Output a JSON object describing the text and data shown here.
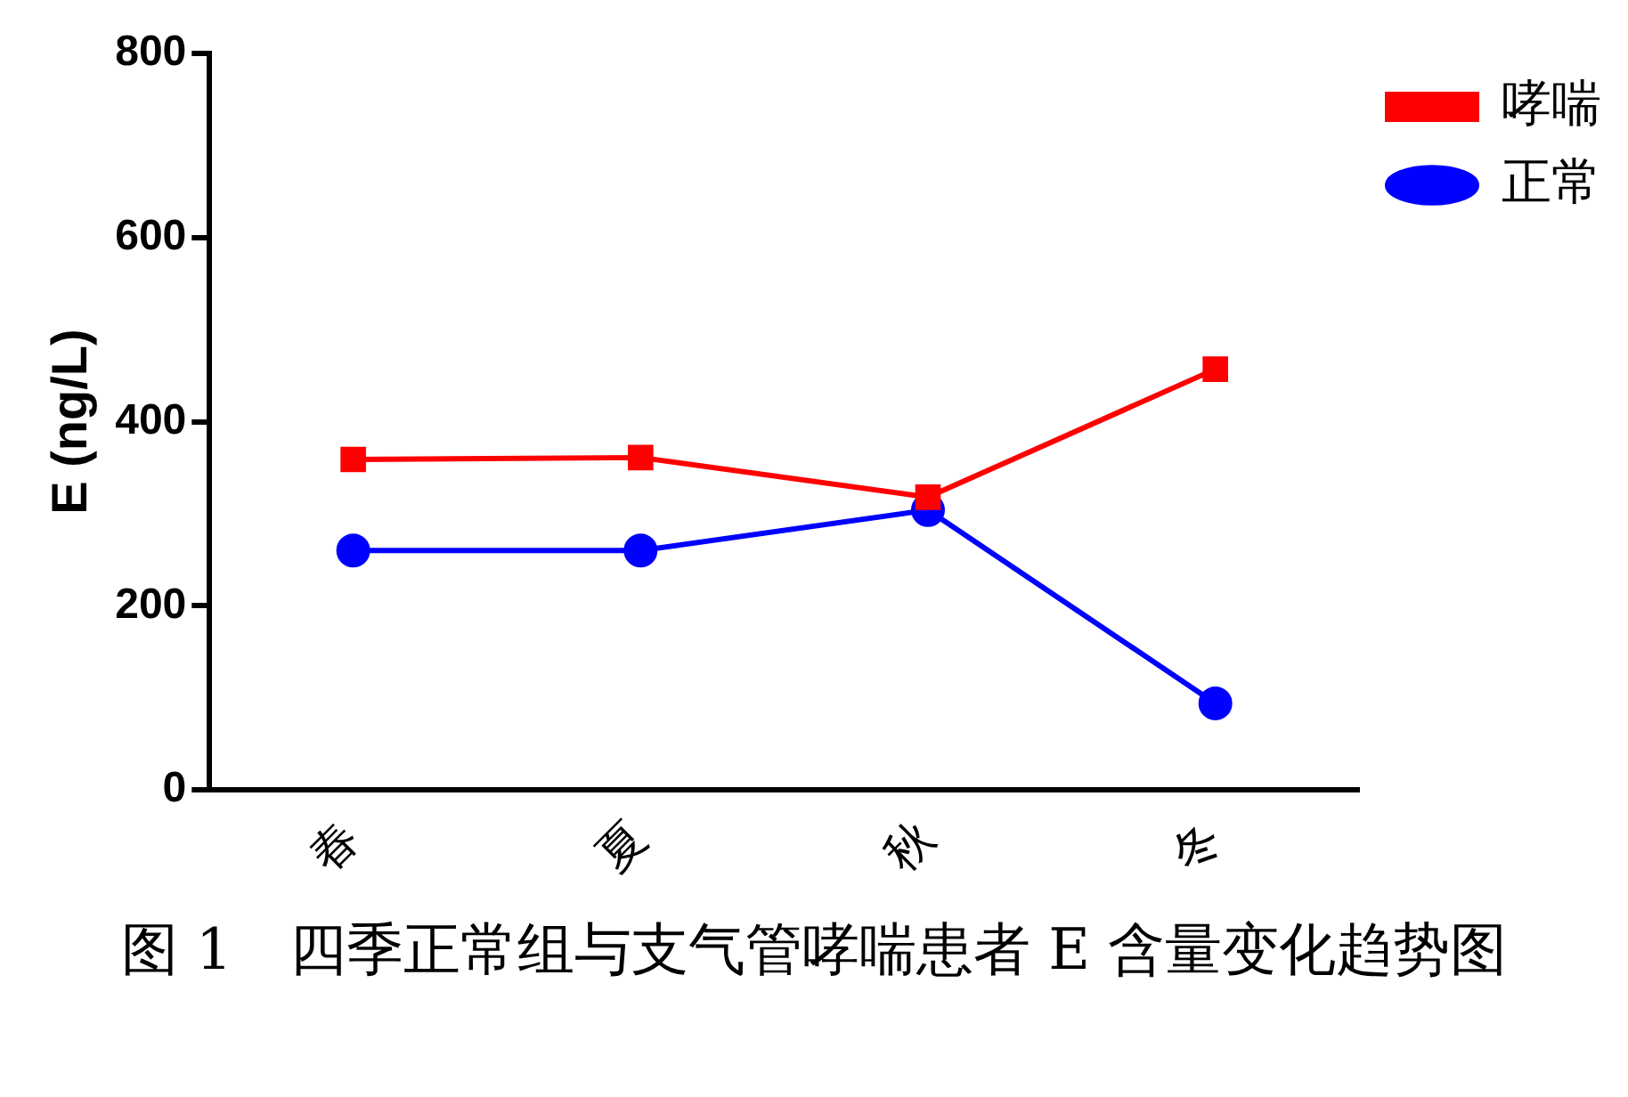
{
  "chart_data": {
    "type": "line",
    "title": "图 1　四季正常组与支气管哮喘患者 E 含量变化趋势图",
    "ylabel": "E (ng/L)",
    "categories": [
      "春",
      "夏",
      "秋",
      "冬"
    ],
    "series": [
      {
        "name": "哮喘",
        "color": "#ff0000",
        "marker": "square",
        "values": [
          359,
          361,
          318,
          457
        ]
      },
      {
        "name": "正常",
        "color": "#0000ff",
        "marker": "circle",
        "values": [
          260,
          260,
          304,
          94
        ]
      }
    ],
    "ylim": [
      0,
      800
    ],
    "yticks": [
      0,
      200,
      400,
      600,
      800
    ],
    "grid": false,
    "legend": "top right",
    "line_style": "solid"
  }
}
